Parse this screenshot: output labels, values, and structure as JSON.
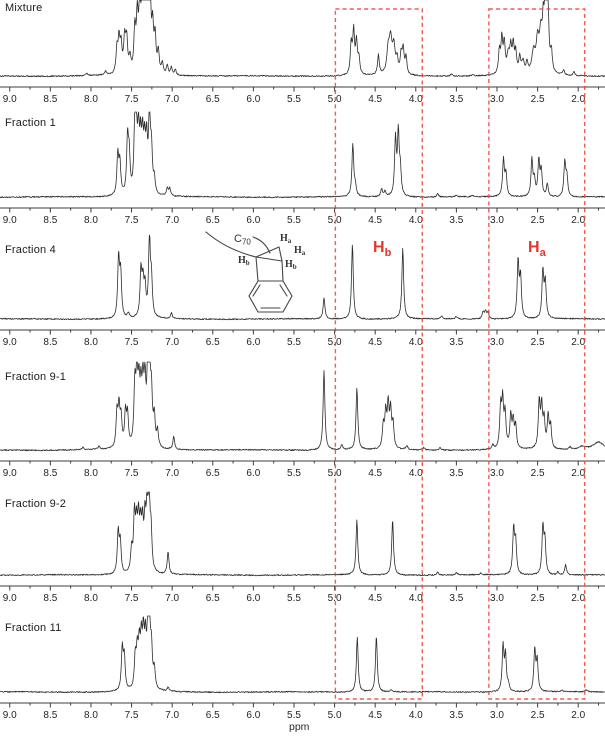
{
  "figure_type": "stacked 1H NMR spectra comparison",
  "chart_data": {
    "type": "line",
    "xlabel": "ppm",
    "x_axis_reversed": true,
    "x_range_displayed": [
      9.12,
      1.67
    ],
    "x_ticks": [
      9.0,
      8.5,
      8.0,
      7.5,
      7.0,
      6.5,
      6.0,
      5.5,
      5.0,
      4.5,
      4.0,
      3.5,
      3.0,
      2.5,
      2.0
    ],
    "grid": false,
    "highlight_regions_ppm": [
      [
        4.99,
        3.92
      ],
      [
        3.1,
        1.92
      ]
    ],
    "highlight_color": "#ef4438",
    "line_color": "#2c2c2c",
    "peak_width_default_ppm": 0.013,
    "annotations": [
      {
        "text": "H",
        "sub": "b",
        "ppm": 4.45,
        "panel": "Fraction 4",
        "color": "#e8352a"
      },
      {
        "text": "H",
        "sub": "a",
        "ppm": 2.52,
        "panel": "Fraction 4",
        "color": "#e8352a"
      }
    ],
    "panels": [
      {
        "label": "Mixture",
        "peaks": [
          [
            8.05,
            0.03
          ],
          [
            7.82,
            0.05
          ],
          [
            7.68,
            0.32
          ],
          [
            7.655,
            0.42
          ],
          [
            7.63,
            0.35
          ],
          [
            7.585,
            0.45,
            0.016
          ],
          [
            7.56,
            0.4
          ],
          [
            7.52,
            0.18
          ],
          [
            7.46,
            0.55
          ],
          [
            7.43,
            0.68
          ],
          [
            7.4,
            0.8
          ],
          [
            7.37,
            0.88
          ],
          [
            7.345,
            0.95
          ],
          [
            7.32,
            1.0
          ],
          [
            7.295,
            0.92
          ],
          [
            7.27,
            0.78
          ],
          [
            7.24,
            0.55
          ],
          [
            7.21,
            0.45
          ],
          [
            7.17,
            0.28
          ],
          [
            7.12,
            0.14
          ],
          [
            7.06,
            0.12
          ],
          [
            7.01,
            0.1
          ],
          [
            6.96,
            0.07
          ],
          [
            4.795,
            0.4
          ],
          [
            4.765,
            0.55
          ],
          [
            4.73,
            0.42
          ],
          [
            4.7,
            0.2
          ],
          [
            4.46,
            0.26
          ],
          [
            4.34,
            0.3,
            0.02
          ],
          [
            4.31,
            0.42,
            0.02
          ],
          [
            4.27,
            0.35,
            0.02
          ],
          [
            4.23,
            0.18
          ],
          [
            4.18,
            0.25
          ],
          [
            4.155,
            0.32
          ],
          [
            4.12,
            0.22
          ],
          [
            3.56,
            0.03
          ],
          [
            3.3,
            0.02
          ],
          [
            2.97,
            0.3
          ],
          [
            2.94,
            0.44
          ],
          [
            2.91,
            0.38
          ],
          [
            2.86,
            0.25,
            0.02
          ],
          [
            2.83,
            0.3
          ],
          [
            2.8,
            0.36
          ],
          [
            2.77,
            0.28
          ],
          [
            2.72,
            0.2
          ],
          [
            2.68,
            0.16,
            0.02
          ],
          [
            2.63,
            0.14
          ],
          [
            2.55,
            0.28,
            0.025
          ],
          [
            2.5,
            0.4,
            0.02
          ],
          [
            2.46,
            0.48,
            0.02
          ],
          [
            2.43,
            0.52
          ],
          [
            2.405,
            0.75
          ],
          [
            2.38,
            1.6
          ],
          [
            2.33,
            0.25
          ],
          [
            2.18,
            0.07
          ],
          [
            2.05,
            0.05
          ]
        ]
      },
      {
        "label": "Fraction 1",
        "peaks": [
          [
            7.67,
            0.5
          ],
          [
            7.645,
            0.4
          ],
          [
            7.55,
            0.68
          ],
          [
            7.53,
            0.45
          ],
          [
            7.46,
            0.82
          ],
          [
            7.44,
            0.6
          ],
          [
            7.415,
            0.68
          ],
          [
            7.39,
            0.58
          ],
          [
            7.365,
            0.62
          ],
          [
            7.34,
            0.55
          ],
          [
            7.315,
            0.6
          ],
          [
            7.28,
            1.0
          ],
          [
            7.255,
            0.52
          ],
          [
            7.22,
            0.18
          ],
          [
            7.06,
            0.1
          ],
          [
            7.03,
            0.09
          ],
          [
            4.775,
            0.65
          ],
          [
            4.745,
            0.12
          ],
          [
            4.42,
            0.1
          ],
          [
            4.38,
            0.06
          ],
          [
            4.25,
            0.7
          ],
          [
            4.215,
            0.76
          ],
          [
            4.19,
            0.3
          ],
          [
            3.73,
            0.04
          ],
          [
            3.5,
            0.02
          ],
          [
            3.3,
            0.02
          ],
          [
            2.92,
            0.46
          ],
          [
            2.89,
            0.28
          ],
          [
            2.57,
            0.46
          ],
          [
            2.54,
            0.2
          ],
          [
            2.485,
            0.44
          ],
          [
            2.455,
            0.32
          ],
          [
            2.38,
            0.16
          ],
          [
            2.165,
            0.43
          ],
          [
            2.14,
            0.25
          ]
        ]
      },
      {
        "label": "Fraction 4",
        "peaks": [
          [
            7.66,
            0.75
          ],
          [
            7.635,
            0.55
          ],
          [
            7.54,
            0.06
          ],
          [
            7.385,
            0.58
          ],
          [
            7.36,
            0.42
          ],
          [
            7.335,
            0.35
          ],
          [
            7.28,
            1.0
          ],
          [
            7.255,
            0.45
          ],
          [
            7.01,
            0.07
          ],
          [
            5.13,
            0.27
          ],
          [
            4.78,
            0.95
          ],
          [
            4.16,
            0.89
          ],
          [
            3.68,
            0.03
          ],
          [
            3.5,
            0.03
          ],
          [
            3.17,
            0.09
          ],
          [
            3.14,
            0.1
          ],
          [
            3.11,
            0.08
          ],
          [
            2.74,
            0.72
          ],
          [
            2.71,
            0.52
          ],
          [
            2.435,
            0.6
          ],
          [
            2.405,
            0.46
          ]
        ]
      },
      {
        "label": "Fraction 9-1",
        "peaks": [
          [
            8.1,
            0.03
          ],
          [
            7.9,
            0.04
          ],
          [
            7.68,
            0.42
          ],
          [
            7.655,
            0.48
          ],
          [
            7.63,
            0.35
          ],
          [
            7.575,
            0.42
          ],
          [
            7.55,
            0.38
          ],
          [
            7.46,
            0.72
          ],
          [
            7.435,
            0.82
          ],
          [
            7.41,
            0.65
          ],
          [
            7.385,
            0.6
          ],
          [
            7.36,
            0.68
          ],
          [
            7.335,
            0.72
          ],
          [
            7.3,
            0.92
          ],
          [
            7.28,
            1.0
          ],
          [
            7.255,
            0.6
          ],
          [
            7.22,
            0.35
          ],
          [
            7.18,
            0.2
          ],
          [
            6.98,
            0.16
          ],
          [
            5.13,
            1.0
          ],
          [
            4.91,
            0.07
          ],
          [
            4.725,
            0.77
          ],
          [
            4.4,
            0.28
          ],
          [
            4.37,
            0.42
          ],
          [
            4.34,
            0.52
          ],
          [
            4.31,
            0.45
          ],
          [
            4.28,
            0.3
          ],
          [
            4.11,
            0.05
          ],
          [
            3.9,
            0.03
          ],
          [
            3.7,
            0.03
          ],
          [
            3.05,
            0.05
          ],
          [
            2.955,
            0.5
          ],
          [
            2.93,
            0.56
          ],
          [
            2.9,
            0.42
          ],
          [
            2.83,
            0.4
          ],
          [
            2.8,
            0.33
          ],
          [
            2.77,
            0.28
          ],
          [
            2.48,
            0.58
          ],
          [
            2.45,
            0.5
          ],
          [
            2.42,
            0.35
          ],
          [
            2.37,
            0.4
          ],
          [
            2.34,
            0.28
          ],
          [
            2.1,
            0.03
          ],
          [
            1.95,
            0.04,
            0.05
          ],
          [
            1.75,
            0.1,
            0.08
          ]
        ]
      },
      {
        "label": "Fraction 9-2",
        "peaks": [
          [
            7.665,
            0.55
          ],
          [
            7.64,
            0.42
          ],
          [
            7.5,
            0.3
          ],
          [
            7.465,
            0.72
          ],
          [
            7.44,
            0.55
          ],
          [
            7.415,
            0.62
          ],
          [
            7.39,
            0.52
          ],
          [
            7.365,
            0.58
          ],
          [
            7.335,
            0.62
          ],
          [
            7.31,
            0.7
          ],
          [
            7.285,
            1.0
          ],
          [
            7.26,
            0.5
          ],
          [
            7.05,
            0.3
          ],
          [
            4.725,
            0.73
          ],
          [
            4.285,
            0.74
          ],
          [
            3.73,
            0.04
          ],
          [
            3.5,
            0.03
          ],
          [
            3.2,
            0.02
          ],
          [
            2.795,
            0.6
          ],
          [
            2.77,
            0.42
          ],
          [
            2.435,
            0.62
          ],
          [
            2.41,
            0.45
          ],
          [
            2.25,
            0.04
          ],
          [
            2.155,
            0.14
          ]
        ]
      },
      {
        "label": "Fraction 11",
        "peaks": [
          [
            7.615,
            0.65
          ],
          [
            7.59,
            0.52
          ],
          [
            7.455,
            0.48
          ],
          [
            7.43,
            0.55
          ],
          [
            7.405,
            0.62
          ],
          [
            7.38,
            0.68
          ],
          [
            7.355,
            0.75
          ],
          [
            7.33,
            0.68
          ],
          [
            7.3,
            0.85
          ],
          [
            7.28,
            1.0
          ],
          [
            7.255,
            0.58
          ],
          [
            7.22,
            0.3
          ],
          [
            7.05,
            0.06
          ],
          [
            4.72,
            0.86
          ],
          [
            4.485,
            0.88
          ],
          [
            4.3,
            0.03
          ],
          [
            2.925,
            0.7
          ],
          [
            2.895,
            0.55
          ],
          [
            2.86,
            0.1
          ],
          [
            2.535,
            0.64
          ],
          [
            2.505,
            0.48
          ],
          [
            2.2,
            0.03
          ],
          [
            1.9,
            0.03
          ]
        ]
      }
    ]
  },
  "structure_inset": {
    "cage_label": "C",
    "cage_sub": "70",
    "h_labels": [
      {
        "t": "H",
        "s": "b"
      },
      {
        "t": "H",
        "s": "a"
      },
      {
        "t": "H",
        "s": "a"
      },
      {
        "t": "H",
        "s": "b"
      }
    ]
  }
}
